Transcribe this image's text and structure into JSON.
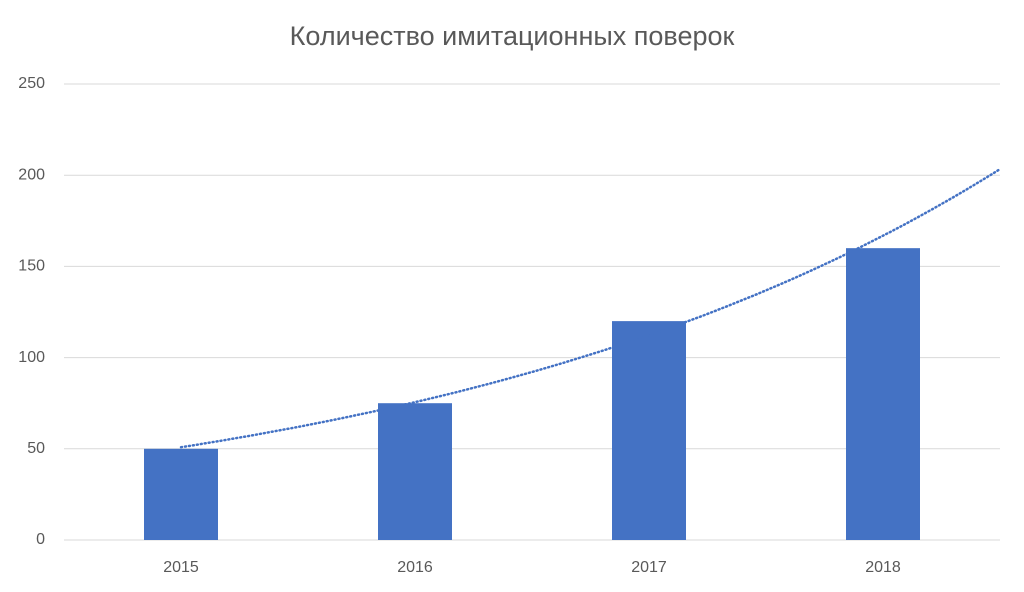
{
  "chart_data": {
    "type": "bar",
    "title": "Количество имитационных поверок",
    "categories": [
      "2015",
      "2016",
      "2017",
      "2018"
    ],
    "values": [
      50,
      75,
      120,
      160
    ],
    "color": "#4472c4",
    "ylim": [
      0,
      250
    ],
    "yticks": [
      0,
      50,
      100,
      150,
      200,
      250
    ],
    "grid": true,
    "trendline": "exponential"
  }
}
